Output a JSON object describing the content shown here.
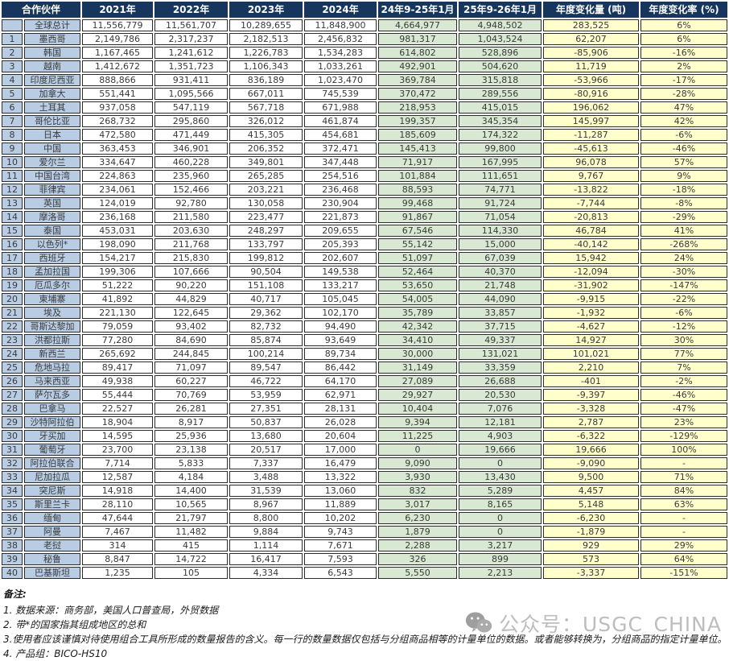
{
  "colors": {
    "header_bg": "#17365d",
    "name_bg": "#b8cce4",
    "green": "#d9e8d2",
    "yellow": "#ffffcc",
    "grid": "#2b2b2b"
  },
  "table": {
    "columns": [
      "合作伙伴",
      "2021年",
      "2022年",
      "2023年",
      "2024年",
      "24年9-25年1月",
      "25年9-26年1月",
      "年度变化量 (吨)",
      "年度变化率 (%)"
    ],
    "rows": [
      {
        "rank": "",
        "name": "全球总计",
        "values": [
          "11,556,779",
          "11,561,707",
          "10,289,655",
          "11,848,900",
          "4,664,977",
          "4,948,502",
          "283,525",
          "6%"
        ]
      },
      {
        "rank": "1",
        "name": "墨西哥",
        "values": [
          "2,149,786",
          "2,317,237",
          "2,182,513",
          "2,456,832",
          "981,317",
          "1,043,524",
          "62,207",
          "6%"
        ]
      },
      {
        "rank": "2",
        "name": "韩国",
        "values": [
          "1,167,465",
          "1,241,612",
          "1,226,783",
          "1,534,283",
          "614,802",
          "528,896",
          "-85,906",
          "-16%"
        ]
      },
      {
        "rank": "3",
        "name": "越南",
        "values": [
          "1,412,672",
          "1,351,723",
          "1,106,343",
          "1,033,261",
          "492,901",
          "504,620",
          "11,719",
          "2%"
        ]
      },
      {
        "rank": "4",
        "name": "印度尼西亚",
        "values": [
          "888,866",
          "931,411",
          "836,189",
          "1,023,470",
          "369,784",
          "315,818",
          "-53,966",
          "-17%"
        ]
      },
      {
        "rank": "5",
        "name": "加拿大",
        "values": [
          "551,441",
          "1,095,566",
          "667,011",
          "745,539",
          "370,472",
          "289,556",
          "-80,916",
          "-28%"
        ]
      },
      {
        "rank": "6",
        "name": "土耳其",
        "values": [
          "937,058",
          "547,119",
          "567,718",
          "671,988",
          "218,953",
          "415,015",
          "196,062",
          "47%"
        ]
      },
      {
        "rank": "7",
        "name": "哥伦比亚",
        "values": [
          "268,732",
          "295,860",
          "326,012",
          "461,874",
          "199,357",
          "345,354",
          "145,997",
          "42%"
        ]
      },
      {
        "rank": "8",
        "name": "日本",
        "values": [
          "472,580",
          "471,449",
          "415,305",
          "454,681",
          "185,609",
          "174,322",
          "-11,287",
          "-6%"
        ]
      },
      {
        "rank": "9",
        "name": "中国",
        "values": [
          "363,453",
          "346,901",
          "206,352",
          "372,471",
          "145,413",
          "99,800",
          "-45,613",
          "-46%"
        ]
      },
      {
        "rank": "10",
        "name": "爱尔兰",
        "values": [
          "334,647",
          "460,228",
          "349,801",
          "347,448",
          "71,917",
          "167,995",
          "96,078",
          "57%"
        ]
      },
      {
        "rank": "11",
        "name": "中国台湾",
        "values": [
          "224,863",
          "235,960",
          "265,285",
          "254,516",
          "101,884",
          "111,651",
          "9,767",
          "9%"
        ]
      },
      {
        "rank": "12",
        "name": "菲律宾",
        "values": [
          "234,061",
          "152,466",
          "203,221",
          "236,468",
          "88,593",
          "74,771",
          "-13,822",
          "-18%"
        ]
      },
      {
        "rank": "13",
        "name": "英国",
        "values": [
          "124,019",
          "92,780",
          "130,058",
          "230,904",
          "99,468",
          "91,724",
          "-7,744",
          "-8%"
        ]
      },
      {
        "rank": "14",
        "name": "摩洛哥",
        "values": [
          "236,168",
          "211,580",
          "223,477",
          "221,873",
          "91,867",
          "71,054",
          "-20,813",
          "-29%"
        ]
      },
      {
        "rank": "15",
        "name": "泰国",
        "values": [
          "453,031",
          "203,630",
          "248,297",
          "209,655",
          "67,546",
          "114,330",
          "46,784",
          "41%"
        ]
      },
      {
        "rank": "16",
        "name": "以色列*",
        "values": [
          "198,090",
          "211,768",
          "133,797",
          "205,393",
          "55,142",
          "15,000",
          "-40,142",
          "-268%"
        ]
      },
      {
        "rank": "17",
        "name": "西班牙",
        "values": [
          "154,217",
          "215,830",
          "199,812",
          "202,607",
          "51,097",
          "67,039",
          "15,942",
          "24%"
        ]
      },
      {
        "rank": "18",
        "name": "孟加拉国",
        "values": [
          "199,306",
          "107,666",
          "90,504",
          "149,538",
          "52,464",
          "40,370",
          "-12,094",
          "-30%"
        ]
      },
      {
        "rank": "19",
        "name": "厄瓜多尔",
        "values": [
          "51,222",
          "90,220",
          "151,108",
          "133,217",
          "53,650",
          "21,748",
          "-31,902",
          "-147%"
        ]
      },
      {
        "rank": "20",
        "name": "柬埔寨",
        "values": [
          "41,892",
          "44,829",
          "40,717",
          "105,045",
          "54,005",
          "44,090",
          "-9,915",
          "-22%"
        ]
      },
      {
        "rank": "21",
        "name": "埃及",
        "values": [
          "221,130",
          "122,645",
          "29,362",
          "102,170",
          "35,789",
          "33,857",
          "-1,932",
          "-6%"
        ]
      },
      {
        "rank": "22",
        "name": "哥斯达黎加",
        "values": [
          "79,059",
          "93,402",
          "82,732",
          "94,490",
          "42,342",
          "37,715",
          "-4,627",
          "-12%"
        ]
      },
      {
        "rank": "23",
        "name": "洪都拉斯",
        "values": [
          "77,280",
          "84,690",
          "85,874",
          "93,649",
          "34,410",
          "49,337",
          "14,927",
          "30%"
        ]
      },
      {
        "rank": "24",
        "name": "新西兰",
        "values": [
          "265,692",
          "244,845",
          "100,214",
          "89,734",
          "30,000",
          "131,021",
          "101,021",
          "77%"
        ]
      },
      {
        "rank": "25",
        "name": "危地马拉",
        "values": [
          "89,417",
          "71,097",
          "89,547",
          "86,442",
          "31,149",
          "33,359",
          "2,210",
          "7%"
        ]
      },
      {
        "rank": "26",
        "name": "马来西亚",
        "values": [
          "49,938",
          "60,227",
          "46,722",
          "64,170",
          "27,089",
          "26,688",
          "-401",
          "-2%"
        ]
      },
      {
        "rank": "27",
        "name": "萨尔瓦多",
        "values": [
          "55,444",
          "70,769",
          "53,959",
          "62,971",
          "29,927",
          "20,530",
          "-9,397",
          "-46%"
        ]
      },
      {
        "rank": "28",
        "name": "巴拿马",
        "values": [
          "22,527",
          "26,281",
          "27,351",
          "28,131",
          "10,404",
          "7,076",
          "-3,328",
          "-47%"
        ]
      },
      {
        "rank": "29",
        "name": "沙特阿拉伯",
        "values": [
          "18,904",
          "8,917",
          "50,837",
          "26,028",
          "9,394",
          "12,181",
          "2,787",
          "23%"
        ]
      },
      {
        "rank": "30",
        "name": "牙买加",
        "values": [
          "14,595",
          "25,936",
          "13,680",
          "20,604",
          "11,225",
          "4,903",
          "-6,322",
          "-129%"
        ]
      },
      {
        "rank": "31",
        "name": "葡萄牙",
        "values": [
          "23,700",
          "23,138",
          "20,517",
          "17,000",
          "0",
          "19,666",
          "19,666",
          "100%"
        ]
      },
      {
        "rank": "32",
        "name": "阿拉伯联合",
        "values": [
          "7,714",
          "5,833",
          "7,337",
          "16,479",
          "9,090",
          "0",
          "-9,090",
          "-"
        ]
      },
      {
        "rank": "33",
        "name": "尼加拉瓜",
        "values": [
          "12,587",
          "4,184",
          "3,488",
          "13,322",
          "3,930",
          "13,430",
          "9,500",
          "71%"
        ]
      },
      {
        "rank": "34",
        "name": "突尼斯",
        "values": [
          "14,918",
          "14,400",
          "31,539",
          "13,060",
          "832",
          "5,289",
          "4,457",
          "84%"
        ]
      },
      {
        "rank": "35",
        "name": "斯里兰卡",
        "values": [
          "28,110",
          "10,565",
          "8,967",
          "11,889",
          "3,017",
          "8,165",
          "5,148",
          "63%"
        ]
      },
      {
        "rank": "36",
        "name": "缅甸",
        "values": [
          "47,644",
          "21,797",
          "8,800",
          "10,202",
          "6,230",
          "0",
          "-6,230",
          "-"
        ]
      },
      {
        "rank": "37",
        "name": "阿曼",
        "values": [
          "7,467",
          "11,482",
          "9,884",
          "9,743",
          "1,879",
          "0",
          "-1,879",
          "-"
        ]
      },
      {
        "rank": "38",
        "name": "老挝",
        "values": [
          "314",
          "415",
          "1,114",
          "7,671",
          "2,288",
          "3,217",
          "929",
          "29%"
        ]
      },
      {
        "rank": "39",
        "name": "秘鲁",
        "values": [
          "8,847",
          "14,722",
          "16,417",
          "7,593",
          "326",
          "899",
          "573",
          "64%"
        ]
      },
      {
        "rank": "40",
        "name": "巴基斯坦",
        "values": [
          "1,235",
          "105",
          "4,334",
          "6,543",
          "5,550",
          "2,213",
          "-3,337",
          "-151%"
        ]
      }
    ]
  },
  "notes": {
    "title": "备注:",
    "items": [
      "1. 数据来源：商务部，美国人口普查局，外贸数据",
      "2. 带*的国家指其组成地区的总和",
      "3.使用者应该谨慎对待使用组合工具所形成的数量报告的含义。每一行的数量数据仅包括与分组商品相等的计量单位的数据。或者能够转换为，分组商品的指定计量单位。",
      "4. 产品组：BICO-HS10"
    ]
  },
  "watermark": {
    "text": "公众号：USGC_CHINA"
  }
}
